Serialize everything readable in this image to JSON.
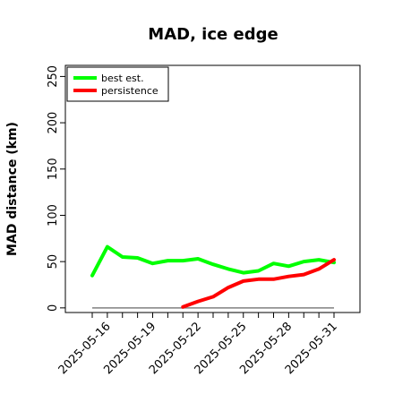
{
  "chart_data": {
    "type": "line",
    "title": "MAD, ice edge",
    "xlabel": "",
    "ylabel": "MAD distance (km)",
    "x": [
      "2025-05-15",
      "2025-05-16",
      "2025-05-17",
      "2025-05-18",
      "2025-05-19",
      "2025-05-20",
      "2025-05-21",
      "2025-05-22",
      "2025-05-23",
      "2025-05-24",
      "2025-05-25",
      "2025-05-26",
      "2025-05-27",
      "2025-05-28",
      "2025-05-29",
      "2025-05-30",
      "2025-05-31"
    ],
    "x_tick_labels": [
      "2025-05-16",
      "2025-05-19",
      "2025-05-22",
      "2025-05-25",
      "2025-05-28",
      "2025-05-31"
    ],
    "y_ticks": [
      0,
      50,
      100,
      150,
      200,
      250
    ],
    "ylim": [
      -5,
      262
    ],
    "legend_position": "top-left",
    "reference_line": {
      "value": 0,
      "color": "#808080"
    },
    "series": [
      {
        "name": "best est.",
        "color": "#00ff00",
        "values": [
          35,
          66,
          55,
          54,
          48,
          51,
          51,
          53,
          47,
          42,
          38,
          40,
          48,
          45,
          50,
          52,
          49
        ]
      },
      {
        "name": "persistence",
        "color": "#ff0000",
        "values": [
          null,
          null,
          null,
          null,
          null,
          null,
          1,
          7,
          12,
          22,
          29,
          31,
          31,
          34,
          36,
          42,
          52
        ]
      }
    ]
  }
}
